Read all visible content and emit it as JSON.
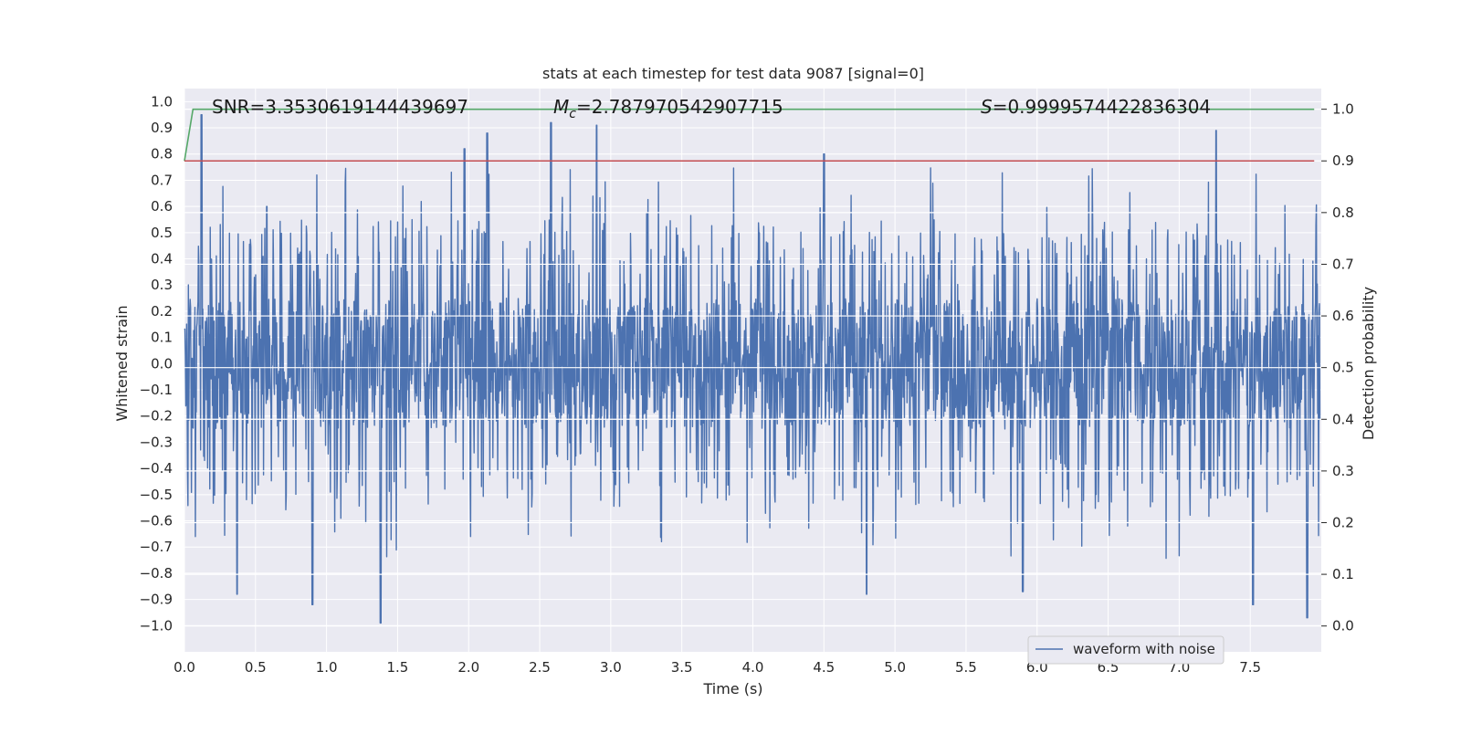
{
  "chart_data": {
    "type": "line",
    "title": "stats at each timestep for test data 9087 [signal=0]",
    "xlabel": "Time (s)",
    "ylabel_left": "Whitened strain",
    "ylabel_right": "Detection probability",
    "xlim": [
      0.0,
      8.0
    ],
    "ylim_left": [
      -1.1,
      1.05
    ],
    "ylim_right": [
      -0.05,
      1.04
    ],
    "x_ticks": [
      "0.0",
      "0.5",
      "1.0",
      "1.5",
      "2.0",
      "2.5",
      "3.0",
      "3.5",
      "4.0",
      "4.5",
      "5.0",
      "5.5",
      "6.0",
      "6.5",
      "7.0",
      "7.5"
    ],
    "y_ticks_left": [
      "1.0",
      "0.9",
      "0.8",
      "0.7",
      "0.6",
      "0.5",
      "0.4",
      "0.3",
      "0.2",
      "0.1",
      "0.0",
      "−0.1",
      "−0.2",
      "−0.3",
      "−0.4",
      "−0.5",
      "−0.6",
      "−0.7",
      "−0.8",
      "−0.9",
      "−1.0"
    ],
    "y_ticks_right": [
      "1.0",
      "0.9",
      "0.8",
      "0.7",
      "0.6",
      "0.5",
      "0.4",
      "0.3",
      "0.2",
      "0.1",
      "0.0"
    ],
    "grid": true,
    "legend": {
      "placement": "lower-right",
      "entries": [
        "waveform with noise"
      ]
    },
    "stats": {
      "snr": "SNR=3.3530619144439697",
      "mc_symbol": "M",
      "mc_sub": "c",
      "mc_value": "=2.787970542907715",
      "s_symbol": "S",
      "s_value": "=0.9999574422836304"
    },
    "series": [
      {
        "name": "waveform with noise",
        "axis": "left",
        "color": "#4c72b0",
        "sample_rate_hz": 2048,
        "envelope_typical": [
          -0.55,
          0.5
        ],
        "peaks": [
          {
            "x": 0.12,
            "y": 0.95
          },
          {
            "x": 0.58,
            "y": 0.6
          },
          {
            "x": 1.97,
            "y": 0.82
          },
          {
            "x": 2.13,
            "y": 0.88
          },
          {
            "x": 2.58,
            "y": 0.92
          },
          {
            "x": 2.9,
            "y": 0.91
          },
          {
            "x": 4.5,
            "y": 0.8
          },
          {
            "x": 7.26,
            "y": 0.89
          }
        ],
        "troughs": [
          {
            "x": 0.37,
            "y": -0.88
          },
          {
            "x": 0.9,
            "y": -0.92
          },
          {
            "x": 1.38,
            "y": -0.99
          },
          {
            "x": 4.8,
            "y": -0.88
          },
          {
            "x": 5.9,
            "y": -0.87
          },
          {
            "x": 7.52,
            "y": -0.92
          },
          {
            "x": 7.9,
            "y": -0.97
          }
        ]
      },
      {
        "name": "",
        "axis": "right",
        "color": "#55a868",
        "points": [
          [
            0.0,
            0.9
          ],
          [
            0.06,
            1.0
          ],
          [
            7.95,
            1.0
          ]
        ]
      },
      {
        "name": "",
        "axis": "right",
        "color": "#c44e52",
        "points": [
          [
            0.0,
            0.9
          ],
          [
            7.95,
            0.9
          ]
        ]
      }
    ]
  }
}
